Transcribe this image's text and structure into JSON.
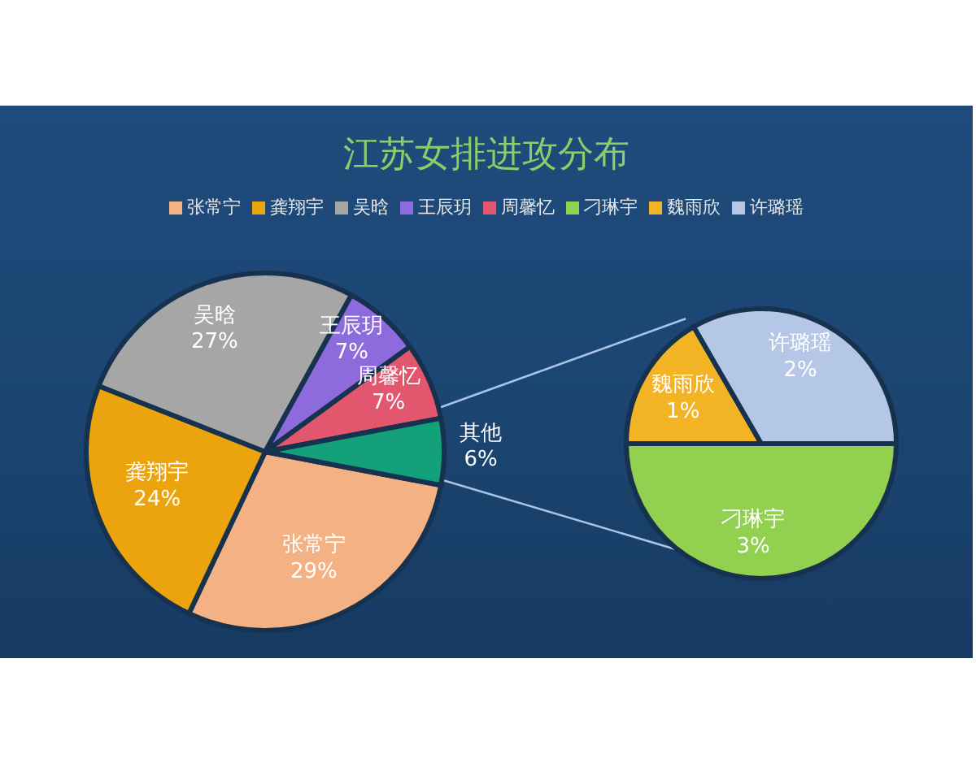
{
  "chart_data": [
    {
      "type": "pie",
      "title": "江苏女排进攻分布",
      "categories": [
        "张常宁",
        "龚翔宇",
        "吴晗",
        "王辰玥",
        "周馨忆",
        "其他"
      ],
      "values": [
        29,
        24,
        27,
        7,
        7,
        6
      ],
      "colors": [
        "#f4b183",
        "#eba40e",
        "#a6a6a6",
        "#8e6bdc",
        "#e2566e",
        "#14a07a"
      ],
      "value_labels": [
        "29%",
        "24%",
        "27%",
        "7%",
        "7%",
        "6%"
      ],
      "legend": "top"
    },
    {
      "type": "pie",
      "categories": [
        "刁琳宇",
        "魏雨欣",
        "许璐瑶"
      ],
      "values": [
        3,
        1,
        2
      ],
      "colors": [
        "#92d050",
        "#f2b324",
        "#b4c7e7"
      ],
      "value_labels": [
        "3%",
        "1%",
        "2%"
      ],
      "legend": "top"
    }
  ]
}
